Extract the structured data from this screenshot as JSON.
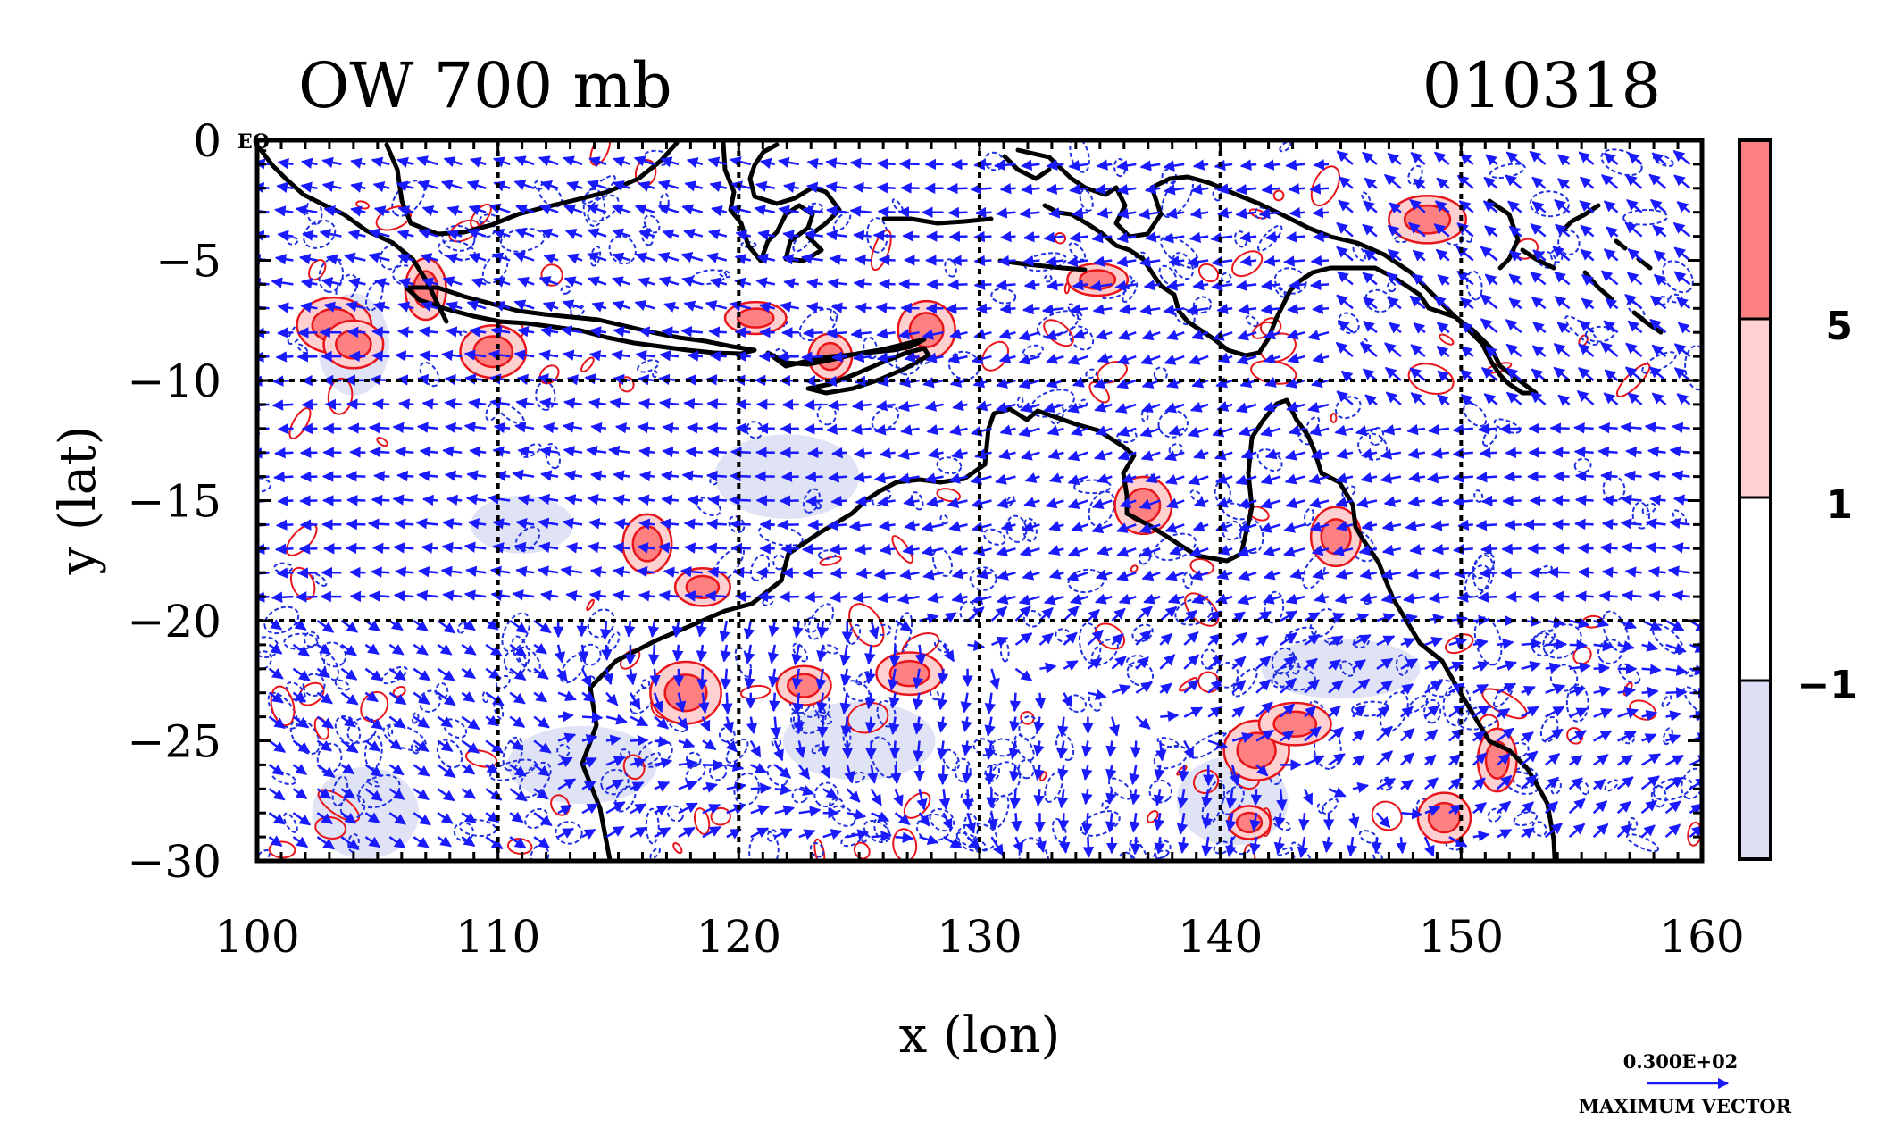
{
  "title": "OW 700 mb",
  "date_code": "010318",
  "eq_marker": "EQ",
  "chart_data": {
    "type": "contour_map",
    "title": "OW 700 mb",
    "date_code": "010318",
    "xlabel": "x (lon)",
    "ylabel": "y (lat)",
    "xlim": [
      100,
      160
    ],
    "ylim": [
      -30,
      0
    ],
    "x_ticks": [
      100,
      110,
      120,
      130,
      140,
      150,
      160
    ],
    "x_tick_labels": [
      "100",
      "110",
      "120",
      "130",
      "140",
      "150",
      "160"
    ],
    "y_ticks": [
      0,
      -5,
      -10,
      -15,
      -20,
      -25,
      -30
    ],
    "y_tick_labels": [
      "0",
      "−5",
      "−10",
      "−15",
      "−20",
      "−25",
      "−30"
    ],
    "grid_lon": [
      110,
      120,
      130,
      140,
      150
    ],
    "grid_lat": [
      -10,
      -20
    ],
    "grid": true,
    "colorbar": {
      "levels": [
        {
          "range": "> 5",
          "color": "#ff8080"
        },
        {
          "range": "1 to 5",
          "color": "#ffd0d0"
        },
        {
          "range": "-1 to 1",
          "color": "#ffffff"
        },
        {
          "range": "< -1",
          "color": "#dde0f5"
        }
      ],
      "labels": [
        "5",
        "1",
        "−1"
      ],
      "label_values": [
        5,
        1,
        -1
      ]
    },
    "reference_vector": {
      "value_label": "0.300E+02",
      "caption": "MAXIMUM VECTOR",
      "color": "#2020ff"
    },
    "positive_ow_centers": [
      {
        "lon": 103.2,
        "lat": -7.7
      },
      {
        "lon": 104.0,
        "lat": -8.5
      },
      {
        "lon": 107.0,
        "lat": -6.2
      },
      {
        "lon": 109.8,
        "lat": -8.8
      },
      {
        "lon": 116.2,
        "lat": -16.8
      },
      {
        "lon": 118.5,
        "lat": -18.6
      },
      {
        "lon": 120.7,
        "lat": -7.4
      },
      {
        "lon": 123.8,
        "lat": -9.0
      },
      {
        "lon": 127.8,
        "lat": -7.9
      },
      {
        "lon": 134.9,
        "lat": -5.8
      },
      {
        "lon": 136.8,
        "lat": -15.2
      },
      {
        "lon": 144.8,
        "lat": -16.5
      },
      {
        "lon": 148.6,
        "lat": -3.3
      },
      {
        "lon": 122.7,
        "lat": -22.7
      },
      {
        "lon": 127.1,
        "lat": -22.2
      },
      {
        "lon": 141.2,
        "lat": -28.4
      },
      {
        "lon": 141.5,
        "lat": -25.4
      },
      {
        "lon": 149.3,
        "lat": -28.2
      },
      {
        "lon": 151.5,
        "lat": -25.8
      },
      {
        "lon": 117.8,
        "lat": -23.0
      },
      {
        "lon": 143.1,
        "lat": -24.3
      }
    ],
    "negative_ow_regions": [
      {
        "lon": 104.0,
        "lat": -8.5
      },
      {
        "lon": 111.0,
        "lat": -16.0
      },
      {
        "lon": 113.5,
        "lat": -26.0
      },
      {
        "lon": 104.5,
        "lat": -28.0
      },
      {
        "lon": 125.0,
        "lat": -25.0
      },
      {
        "lon": 122.0,
        "lat": -14.0
      },
      {
        "lon": 145.0,
        "lat": -22.0
      },
      {
        "lon": 140.5,
        "lat": -27.5
      }
    ],
    "wind_field": "easterly trades north of 20°S; southeasterly/westerly flow south of 20°S"
  },
  "colors": {
    "coast": "#000000",
    "vector": "#1a1aff",
    "contour_neg": "#2030e0",
    "contour_pos": "#e8151a",
    "fill_pos_high": "#ff8080",
    "fill_pos_low": "#ffd0d0",
    "fill_neg": "#dde0f5"
  }
}
